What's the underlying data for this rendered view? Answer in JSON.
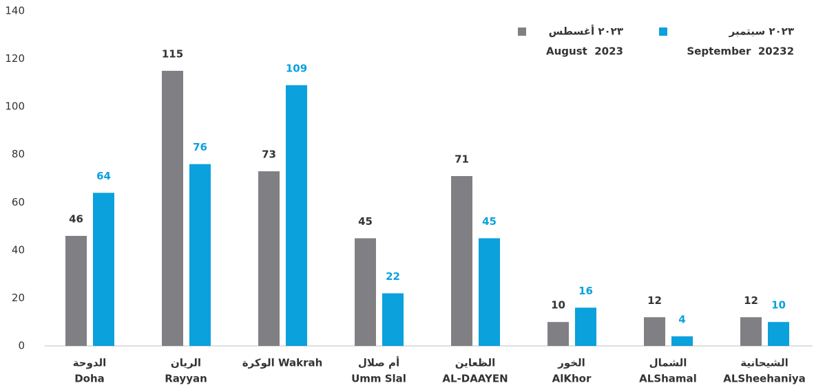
{
  "chart_data": {
    "type": "bar",
    "categories": [
      [
        "الدوحة",
        "Doha"
      ],
      [
        "الريان",
        "Rayyan"
      ],
      [
        "الوكرة Wakrah"
      ],
      [
        "أم صلال",
        "Umm Slal"
      ],
      [
        "الظعاين",
        "AL-DAAYEN"
      ],
      [
        "الخور",
        "AlKhor"
      ],
      [
        "الشمال",
        "ALShamal"
      ],
      [
        "الشيحانية",
        "ALSheehaniya"
      ]
    ],
    "series": [
      {
        "name": [
          "٢٠٢٣ أغسطس",
          "August  2023"
        ],
        "color": "#808084",
        "label_color": "#333333",
        "values": [
          46,
          115,
          73,
          45,
          71,
          10,
          12,
          12
        ]
      },
      {
        "name": [
          "٢٠٢٣ سبتمبر",
          "September  20232"
        ],
        "color": "#0aa1dc",
        "label_color": "#0aa1dc",
        "values": [
          64,
          76,
          109,
          22,
          45,
          16,
          4,
          10
        ]
      }
    ],
    "ylim": [
      0,
      140
    ],
    "yticks": [
      0,
      20,
      40,
      60,
      80,
      100,
      120,
      140
    ],
    "legend": "top-right"
  }
}
